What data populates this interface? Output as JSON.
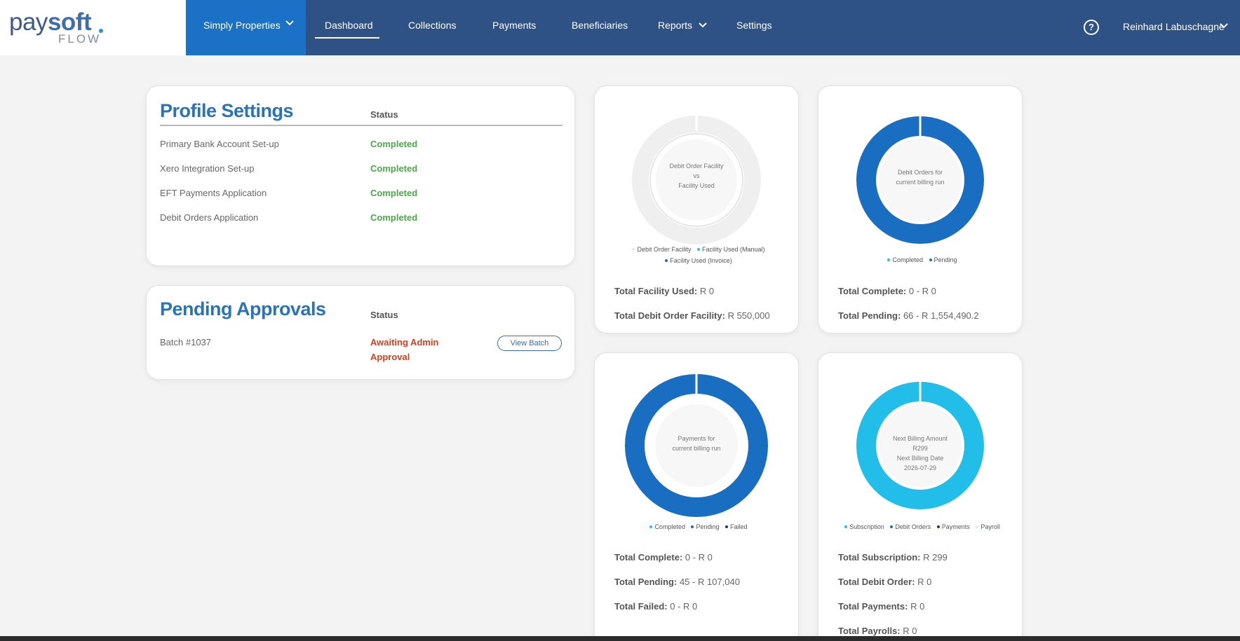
{
  "header": {
    "logo": {
      "pay": "pay",
      "soft": "soft",
      "flow": "FLOW"
    },
    "company": "Simply Properties",
    "nav": [
      {
        "label": "Dashboard"
      },
      {
        "label": "Collections"
      },
      {
        "label": "Payments"
      },
      {
        "label": "Beneficiaries"
      },
      {
        "label": "Reports"
      },
      {
        "label": "Settings"
      }
    ],
    "help": "?",
    "user": "Reinhard Labuschagne"
  },
  "profile": {
    "title": "Profile Settings",
    "status_header": "Status",
    "rows": [
      {
        "label": "Primary Bank Account Set-up",
        "status": "Completed"
      },
      {
        "label": "Xero Integration Set-up",
        "status": "Completed"
      },
      {
        "label": "EFT Payments Application",
        "status": "Completed"
      },
      {
        "label": "Debit Orders Application",
        "status": "Completed"
      }
    ]
  },
  "pending": {
    "title": "Pending Approvals",
    "status_header": "Status",
    "rows": [
      {
        "label": "Batch #1037",
        "status_line1": "Awaiting Admin",
        "status_line2": "Approval",
        "button": "View Batch"
      }
    ]
  },
  "charts": [
    {
      "center": [
        "Debit Order Facility",
        "vs",
        "Facility Used"
      ],
      "legend": [
        {
          "label": "Debit Order Facility",
          "color": "#e8e8e8"
        },
        {
          "label": "Facility Used (Manual)",
          "color": "#2bbce8"
        },
        {
          "label": "Facility Used (Invoice)",
          "color": "#1a6ec2"
        }
      ],
      "stats": [
        {
          "label": "Total Facility Used:",
          "value": "R 0"
        },
        {
          "label": "Total Debit Order Facility:",
          "value": "R 550,000"
        }
      ],
      "segments": [
        {
          "fraction": 1.0,
          "color": "#efefef"
        }
      ]
    },
    {
      "center": [
        "Debit Orders for",
        "current billing run"
      ],
      "legend": [
        {
          "label": "Completed",
          "color": "#2bbce8"
        },
        {
          "label": "Pending",
          "color": "#1a6ec2"
        }
      ],
      "stats": [
        {
          "label": "Total Complete:",
          "value": "0 - R 0"
        },
        {
          "label": "Total Pending:",
          "value": "66 - R 1,554,490.2"
        }
      ],
      "segments": [
        {
          "fraction": 1.0,
          "color": "#1a6ec2"
        }
      ]
    },
    {
      "center": [
        "Payments for",
        "current billing run"
      ],
      "legend": [
        {
          "label": "Completed",
          "color": "#2bbce8"
        },
        {
          "label": "Pending",
          "color": "#1a6ec2"
        },
        {
          "label": "Failed",
          "color": "#163a6e"
        }
      ],
      "stats": [
        {
          "label": "Total Complete:",
          "value": "0 - R 0"
        },
        {
          "label": "Total Pending:",
          "value": "45 - R 107,040"
        },
        {
          "label": "Total Failed:",
          "value": "0 - R 0"
        }
      ],
      "segments": [
        {
          "fraction": 1.0,
          "color": "#1a6ec2"
        }
      ]
    },
    {
      "center": [
        "Next Billing Amount",
        "R299",
        "Next Billing Date",
        "2026-07-29"
      ],
      "legend": [
        {
          "label": "Subscription",
          "color": "#2bbce8"
        },
        {
          "label": "Debit Orders",
          "color": "#1a6ec2"
        },
        {
          "label": "Payments",
          "color": "#163a6e"
        },
        {
          "label": "Payroll",
          "color": "#d9eef8"
        }
      ],
      "stats": [
        {
          "label": "Total Subscription:",
          "value": "R 299"
        },
        {
          "label": "Total Debit Order:",
          "value": "R 0"
        },
        {
          "label": "Total Payments:",
          "value": "R 0"
        },
        {
          "label": "Total Payrolls:",
          "value": "R 0"
        }
      ],
      "segments": [
        {
          "fraction": 1.0,
          "color": "#22bde8"
        }
      ]
    }
  ]
}
